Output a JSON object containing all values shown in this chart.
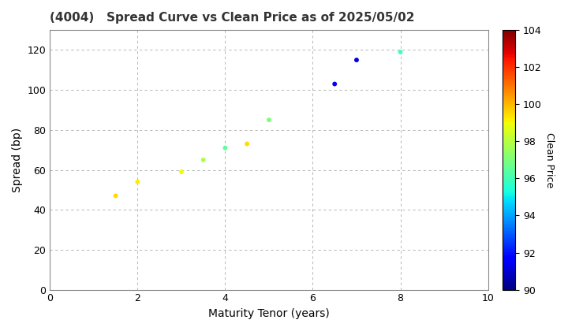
{
  "title": "(4004)   Spread Curve vs Clean Price as of 2025/05/02",
  "xlabel": "Maturity Tenor (years)",
  "ylabel": "Spread (bp)",
  "colorbar_label": "Clean Price",
  "xlim": [
    0,
    10
  ],
  "ylim": [
    0,
    130
  ],
  "xticks": [
    0,
    2,
    4,
    6,
    8,
    10
  ],
  "yticks": [
    0,
    20,
    40,
    60,
    80,
    100,
    120
  ],
  "colorbar_vmin": 90,
  "colorbar_vmax": 104,
  "colorbar_ticks": [
    90,
    92,
    94,
    96,
    98,
    100,
    102,
    104
  ],
  "points": [
    {
      "tenor": 1.5,
      "spread": 47,
      "price": 99.5
    },
    {
      "tenor": 2.0,
      "spread": 54,
      "price": 99.2
    },
    {
      "tenor": 3.0,
      "spread": 59,
      "price": 99.0
    },
    {
      "tenor": 3.5,
      "spread": 65,
      "price": 97.8
    },
    {
      "tenor": 4.0,
      "spread": 71,
      "price": 96.5
    },
    {
      "tenor": 4.5,
      "spread": 73,
      "price": 99.5
    },
    {
      "tenor": 5.0,
      "spread": 85,
      "price": 97.0
    },
    {
      "tenor": 6.5,
      "spread": 103,
      "price": 91.5
    },
    {
      "tenor": 7.0,
      "spread": 115,
      "price": 91.2
    },
    {
      "tenor": 8.0,
      "spread": 119,
      "price": 96.0
    }
  ],
  "marker_size": 18,
  "colormap": "jet",
  "grid_color": "#aaaaaa",
  "background_color": "#ffffff",
  "title_fontsize": 11,
  "title_fontweight": "bold",
  "title_color": "#333333",
  "axis_fontsize": 10,
  "tick_fontsize": 9,
  "colorbar_fontsize": 9
}
